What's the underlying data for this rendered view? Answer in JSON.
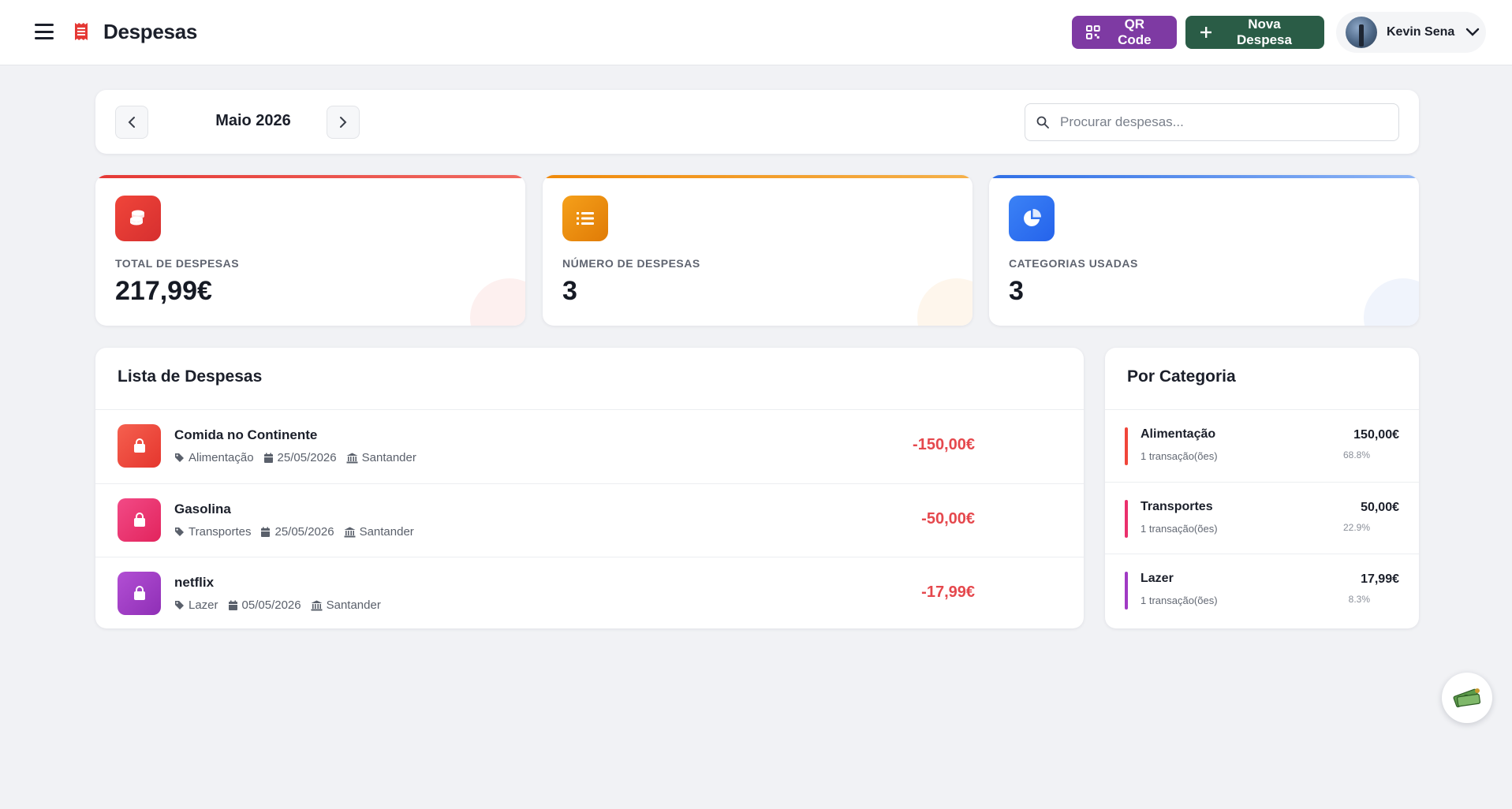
{
  "header": {
    "title": "Despesas",
    "qr_label": "QR Code",
    "new_label": "Nova Despesa",
    "user_name": "Kevin Sena"
  },
  "month_nav": {
    "label": "Maio 2026",
    "search_placeholder": "Procurar despesas...",
    "search_value": ""
  },
  "stats": [
    {
      "label": "TOTAL DE DESPESAS",
      "value": "217,99€",
      "color": "#e53935",
      "icon": "coins-icon"
    },
    {
      "label": "NÚMERO DE DESPESAS",
      "value": "3",
      "color": "#f08a0a",
      "icon": "list-icon"
    },
    {
      "label": "CATEGORIAS USADAS",
      "value": "3",
      "color": "#2f6fe6",
      "icon": "pie-chart-icon"
    }
  ],
  "expenses": {
    "title": "Lista de Despesas",
    "items": [
      {
        "title": "Comida no Continente",
        "category": "Alimentação",
        "date": "25/05/2026",
        "bank": "Santander",
        "amount": "-150,00€",
        "color": "#f0453a"
      },
      {
        "title": "Gasolina",
        "category": "Transportes",
        "date": "25/05/2026",
        "bank": "Santander",
        "amount": "-50,00€",
        "color": "#ea2f6c"
      },
      {
        "title": "netflix",
        "category": "Lazer",
        "date": "05/05/2026",
        "bank": "Santander",
        "amount": "-17,99€",
        "color": "#a03ac4"
      }
    ]
  },
  "categories": {
    "title": "Por Categoria",
    "items": [
      {
        "name": "Alimentação",
        "count": "1 transação(ões)",
        "amount": "150,00€",
        "percent": "68.8%",
        "color": "#f0453a"
      },
      {
        "name": "Transportes",
        "count": "1 transação(ões)",
        "amount": "50,00€",
        "percent": "22.9%",
        "color": "#ea2f6c"
      },
      {
        "name": "Lazer",
        "count": "1 transação(ões)",
        "amount": "17,99€",
        "percent": "8.3%",
        "color": "#a03ac4"
      }
    ]
  }
}
